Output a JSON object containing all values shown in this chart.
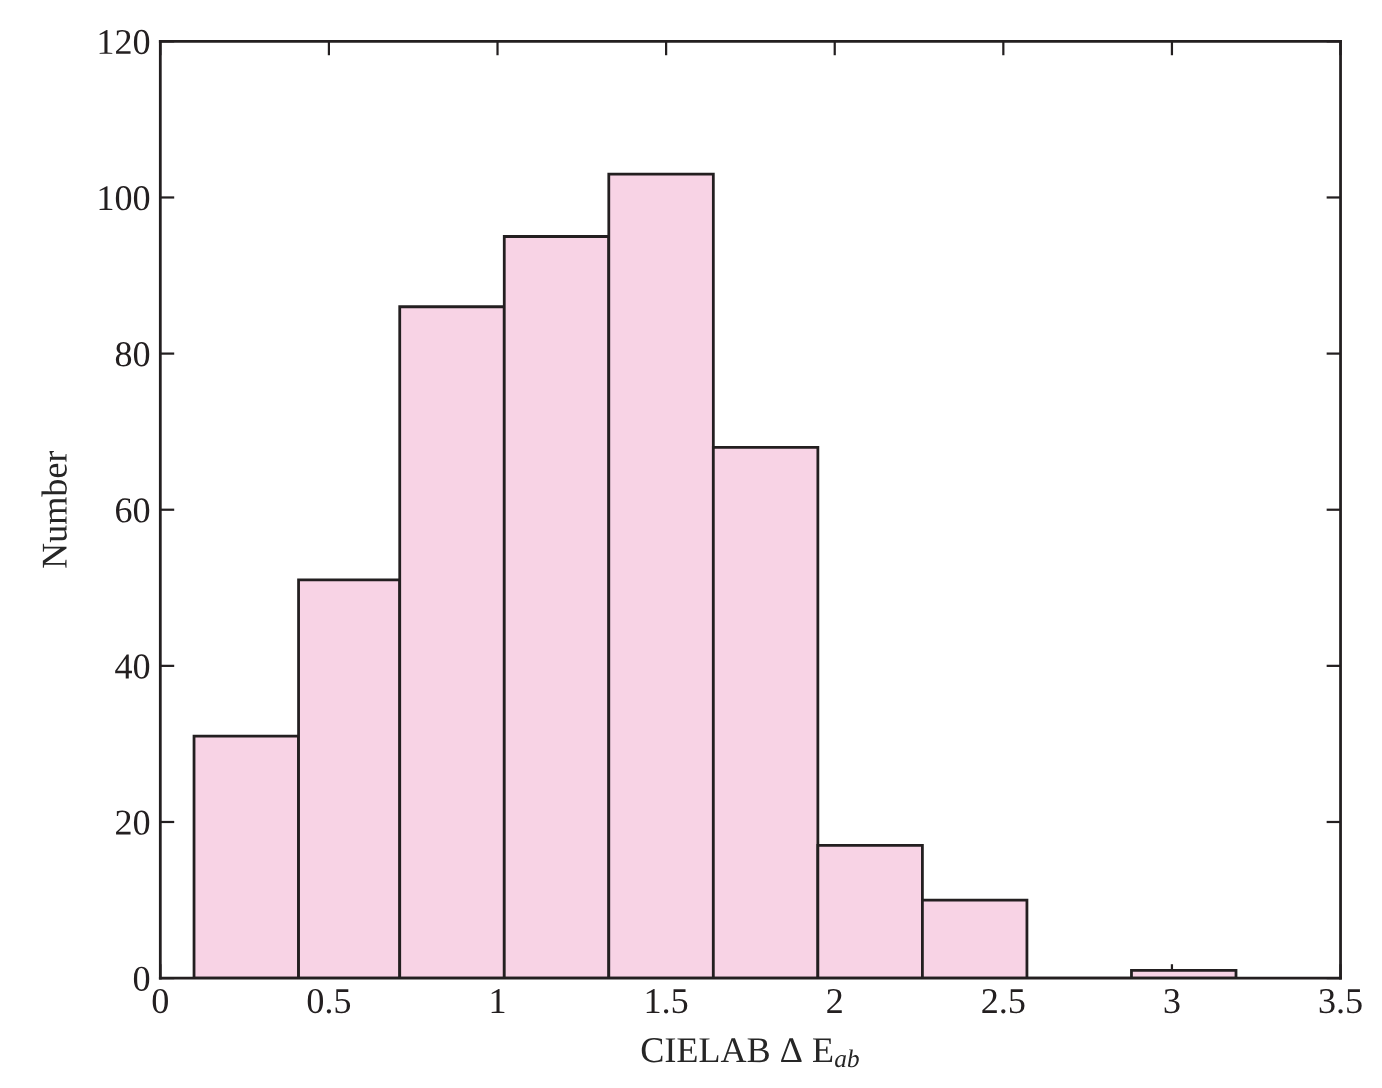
{
  "chart_data": {
    "type": "histogram",
    "xlabel": "CIELAB Δ E$_{ab}$",
    "ylabel": "Number",
    "bins": [
      0.1,
      0.41,
      0.71,
      1.02,
      1.33,
      1.64,
      1.95,
      2.26,
      2.57,
      2.88,
      3.19
    ],
    "values": [
      31,
      51,
      86,
      95,
      103,
      68,
      17,
      10,
      0,
      1
    ],
    "color": "#f8d3e5",
    "xlim": [
      0,
      3.5
    ],
    "xticks": [
      0,
      0.5,
      1,
      1.5,
      2,
      2.5,
      3,
      3.5
    ],
    "ylim": [
      0,
      120
    ],
    "yticks": [
      0,
      20,
      40,
      60,
      80,
      100,
      120
    ],
    "grid": false,
    "legend": false
  }
}
